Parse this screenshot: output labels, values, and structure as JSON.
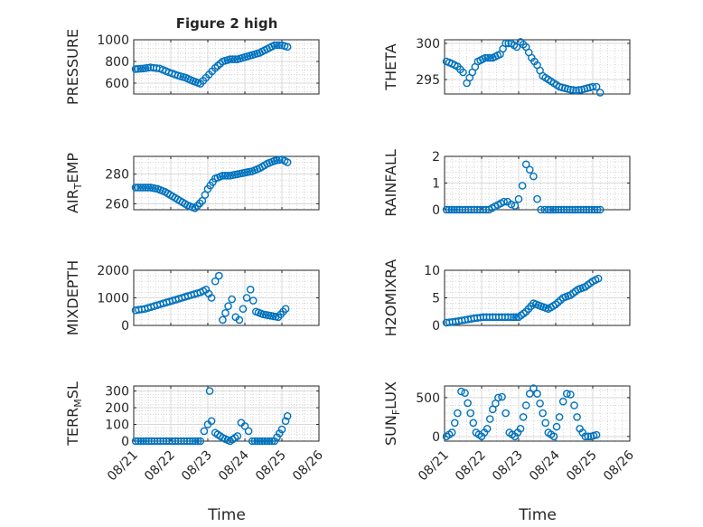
{
  "figure": {
    "title": "Figure 2 high",
    "xlabel": "Time"
  },
  "colors": {
    "marker": "#0072BD",
    "axis": "#262626",
    "grid": "#d9d9d9",
    "minor_grid": "#bfbfbf"
  },
  "x_tick_labels": [
    "08/21",
    "08/22",
    "08/23",
    "08/24",
    "08/25",
    "08/26"
  ],
  "chart_data": [
    {
      "type": "scatter",
      "ylabel": "PRESSURE",
      "xlim": [
        0,
        5
      ],
      "ylim": [
        500,
        1000
      ],
      "yticks": [
        600,
        800,
        1000
      ],
      "yticklabels": [
        "600",
        "800",
        "1000"
      ],
      "x": [
        0.05,
        0.25,
        0.45,
        0.7,
        0.95,
        1.2,
        1.4,
        1.6,
        1.8,
        1.95,
        2.2,
        2.4,
        2.6,
        2.8,
        3.0,
        3.2,
        3.4,
        3.6,
        3.8,
        4.0,
        4.15
      ],
      "y": [
        730,
        735,
        745,
        735,
        700,
        670,
        650,
        620,
        595,
        650,
        740,
        800,
        820,
        820,
        840,
        860,
        880,
        915,
        950,
        950,
        935
      ]
    },
    {
      "type": "scatter",
      "ylabel": "THETA",
      "xlim": [
        0,
        5
      ],
      "ylim": [
        293,
        300.5
      ],
      "yticks": [
        295,
        300
      ],
      "yticklabels": [
        "295",
        "300"
      ],
      "x": [
        0.05,
        0.2,
        0.35,
        0.5,
        0.6,
        0.75,
        0.9,
        1.1,
        1.3,
        1.5,
        1.65,
        1.8,
        1.95,
        2.05,
        2.2,
        2.35,
        2.5,
        2.65,
        2.8,
        2.95,
        3.1,
        3.25,
        3.4,
        3.55,
        3.7,
        3.85,
        4.0,
        4.1,
        4.2
      ],
      "y": [
        297.5,
        297.2,
        296.8,
        296.0,
        294.5,
        296.0,
        297.5,
        298.0,
        298.0,
        298.5,
        300.0,
        300.0,
        299.5,
        300.2,
        299.5,
        298.0,
        297.0,
        295.5,
        295.0,
        294.5,
        294.0,
        293.8,
        293.6,
        293.5,
        293.6,
        293.8,
        294.0,
        294.0,
        293.2
      ]
    },
    {
      "type": "scatter",
      "ylabel": "AIR_TEMP",
      "xlim": [
        0,
        5
      ],
      "ylim": [
        256,
        292
      ],
      "yticks": [
        260,
        280
      ],
      "yticklabels": [
        "260",
        "280"
      ],
      "x": [
        0.05,
        0.25,
        0.45,
        0.65,
        0.85,
        1.05,
        1.25,
        1.45,
        1.65,
        1.85,
        2.0,
        2.2,
        2.4,
        2.6,
        2.8,
        3.0,
        3.2,
        3.4,
        3.6,
        3.8,
        4.0,
        4.15
      ],
      "y": [
        271,
        271,
        271,
        270,
        268,
        265,
        262,
        259,
        257,
        262,
        270,
        277,
        279,
        279,
        280,
        281,
        282,
        284,
        287,
        289,
        290,
        288
      ]
    },
    {
      "type": "scatter",
      "ylabel": "RAINFALL",
      "xlim": [
        0,
        5
      ],
      "ylim": [
        0,
        2
      ],
      "yticks": [
        0,
        1,
        2
      ],
      "yticklabels": [
        "0",
        "1",
        "2"
      ],
      "x": [
        0.05,
        0.4,
        0.8,
        1.2,
        1.6,
        1.7,
        1.8,
        1.9,
        2.0,
        2.1,
        2.2,
        2.3,
        2.4,
        2.5,
        2.6,
        2.7,
        2.8,
        3.0,
        3.3,
        3.6,
        3.9,
        4.2
      ],
      "y": [
        0,
        0,
        0,
        0,
        0.3,
        0.3,
        0.2,
        0.15,
        0.4,
        0.9,
        1.7,
        1.5,
        1.25,
        0.4,
        0,
        0,
        0,
        0,
        0,
        0,
        0,
        0
      ]
    },
    {
      "type": "scatter",
      "ylabel": "MIXDEPTH",
      "xlim": [
        0,
        5
      ],
      "ylim": [
        0,
        2000
      ],
      "yticks": [
        0,
        1000,
        2000
      ],
      "yticklabels": [
        "0",
        "1000",
        "2000"
      ],
      "x": [
        0.05,
        0.3,
        0.55,
        0.8,
        1.05,
        1.3,
        1.55,
        1.8,
        1.95,
        2.1,
        2.2,
        2.3,
        2.4,
        2.55,
        2.65,
        2.75,
        2.85,
        2.95,
        3.05,
        3.15,
        3.3,
        3.5,
        3.7,
        3.9,
        4.1
      ],
      "y": [
        550,
        600,
        700,
        800,
        900,
        1000,
        1100,
        1200,
        1300,
        1000,
        1600,
        1800,
        200,
        700,
        950,
        300,
        200,
        600,
        1000,
        1300,
        500,
        400,
        350,
        300,
        600
      ]
    },
    {
      "type": "scatter",
      "ylabel": "H2OMIXRA",
      "xlim": [
        0,
        5
      ],
      "ylim": [
        0,
        10
      ],
      "yticks": [
        0,
        5,
        10
      ],
      "yticklabels": [
        "0",
        "5",
        "10"
      ],
      "x": [
        0.05,
        0.3,
        0.55,
        0.8,
        1.05,
        1.3,
        1.55,
        1.8,
        2.0,
        2.2,
        2.4,
        2.6,
        2.8,
        3.0,
        3.2,
        3.4,
        3.6,
        3.8,
        4.0,
        4.15
      ],
      "y": [
        0.5,
        0.7,
        1.0,
        1.3,
        1.5,
        1.5,
        1.5,
        1.5,
        1.5,
        2.5,
        4.0,
        3.5,
        3.0,
        3.8,
        5.0,
        5.5,
        6.5,
        7.0,
        8.0,
        8.5
      ]
    },
    {
      "type": "scatter",
      "ylabel": "TERR_MSL",
      "xlim": [
        0,
        5
      ],
      "ylim": [
        0,
        330
      ],
      "yticks": [
        0,
        100,
        200,
        300
      ],
      "yticklabels": [
        "0",
        "100",
        "200",
        "300"
      ],
      "x": [
        0.05,
        0.4,
        0.8,
        1.2,
        1.6,
        1.8,
        1.9,
        2.0,
        2.05,
        2.1,
        2.2,
        2.4,
        2.6,
        2.8,
        2.9,
        3.0,
        3.1,
        3.2,
        3.4,
        3.6,
        3.8,
        4.0,
        4.1,
        4.15
      ],
      "y": [
        0,
        0,
        0,
        0,
        0,
        0,
        60,
        100,
        300,
        120,
        50,
        20,
        0,
        30,
        110,
        90,
        60,
        0,
        0,
        0,
        0,
        70,
        120,
        150
      ]
    },
    {
      "type": "scatter",
      "ylabel": "SUN_FLUX",
      "xlim": [
        0,
        5
      ],
      "ylim": [
        -60,
        650
      ],
      "yticks": [
        0,
        500
      ],
      "yticklabels": [
        "0",
        "500"
      ],
      "x": [
        0.05,
        0.2,
        0.35,
        0.45,
        0.55,
        0.7,
        0.85,
        1.0,
        1.15,
        1.3,
        1.45,
        1.55,
        1.65,
        1.75,
        1.9,
        2.05,
        2.2,
        2.3,
        2.4,
        2.5,
        2.65,
        2.8,
        2.95,
        3.1,
        3.2,
        3.3,
        3.4,
        3.5,
        3.65,
        3.8,
        3.95,
        4.1
      ],
      "y": [
        0,
        50,
        300,
        580,
        560,
        300,
        50,
        0,
        100,
        350,
        500,
        510,
        300,
        50,
        0,
        100,
        400,
        550,
        620,
        550,
        300,
        50,
        0,
        250,
        450,
        550,
        540,
        400,
        100,
        0,
        0,
        20
      ]
    }
  ]
}
